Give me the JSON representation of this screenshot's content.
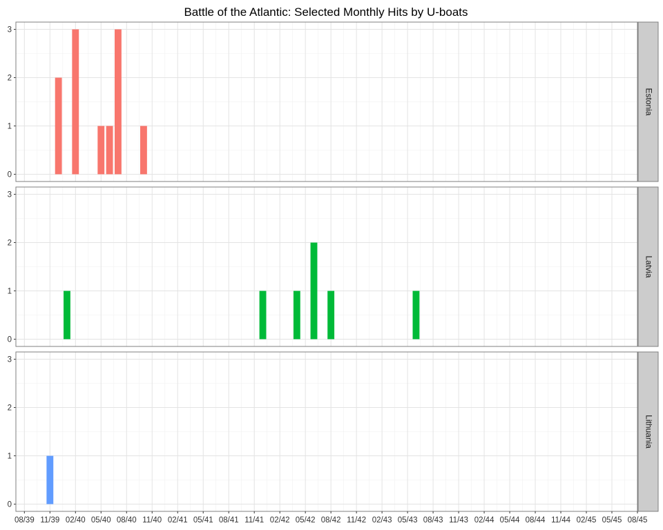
{
  "chart_data": {
    "type": "bar",
    "title": "Battle of the Atlantic: Selected Monthly Hits by U-boats",
    "xlabel": "",
    "ylabel": "",
    "x_tick_labels": [
      "08/39",
      "11/39",
      "02/40",
      "05/40",
      "08/40",
      "11/40",
      "02/41",
      "05/41",
      "08/41",
      "11/41",
      "02/42",
      "05/42",
      "08/42",
      "11/42",
      "02/43",
      "05/43",
      "08/43",
      "11/43",
      "02/44",
      "05/44",
      "08/44",
      "11/44",
      "02/45",
      "05/45",
      "08/45"
    ],
    "x_range": [
      "1939-07",
      "1945-08"
    ],
    "ylim": [
      -0.15,
      3.15
    ],
    "y_ticks": [
      0,
      1,
      2,
      3
    ],
    "grid": true,
    "legend": "none",
    "facet_layout": "rows, strip labels on right",
    "series": [
      {
        "name": "Estonia",
        "color": "#F8766D",
        "points": [
          {
            "month": "1939-12",
            "value": 2
          },
          {
            "month": "1940-02",
            "value": 3
          },
          {
            "month": "1940-05",
            "value": 1
          },
          {
            "month": "1940-06",
            "value": 1
          },
          {
            "month": "1940-07",
            "value": 3
          },
          {
            "month": "1940-10",
            "value": 1
          }
        ]
      },
      {
        "name": "Latvia",
        "color": "#00BA38",
        "points": [
          {
            "month": "1940-01",
            "value": 1
          },
          {
            "month": "1941-12",
            "value": 1
          },
          {
            "month": "1942-04",
            "value": 1
          },
          {
            "month": "1942-06",
            "value": 2
          },
          {
            "month": "1942-08",
            "value": 1
          },
          {
            "month": "1943-06",
            "value": 1
          }
        ]
      },
      {
        "name": "Lithuania",
        "color": "#619CFF",
        "points": [
          {
            "month": "1939-11",
            "value": 1
          }
        ]
      }
    ]
  }
}
